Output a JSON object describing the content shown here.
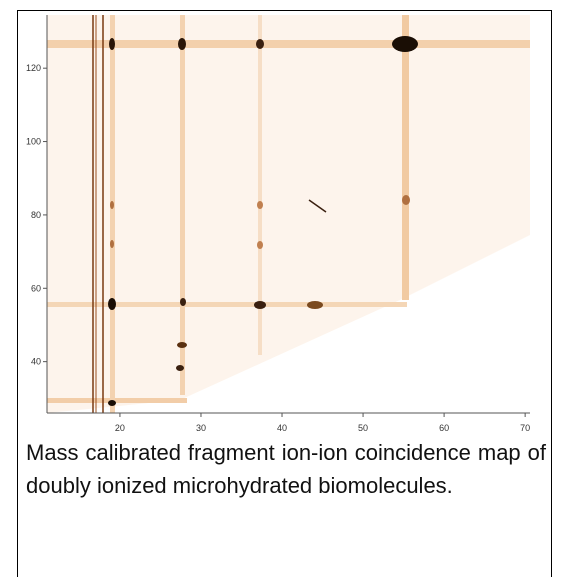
{
  "chart_data": {
    "type": "heatmap",
    "xlim": [
      11,
      70.6
    ],
    "ylim": [
      26,
      134.5
    ],
    "xticks": [
      20,
      30,
      40,
      50,
      60,
      70
    ],
    "yticks": [
      40,
      60,
      80,
      100,
      120
    ],
    "caption": "Mass calibrated fragment ion-ion coincidence map of doubly ionized microhydrated biomolecules."
  }
}
